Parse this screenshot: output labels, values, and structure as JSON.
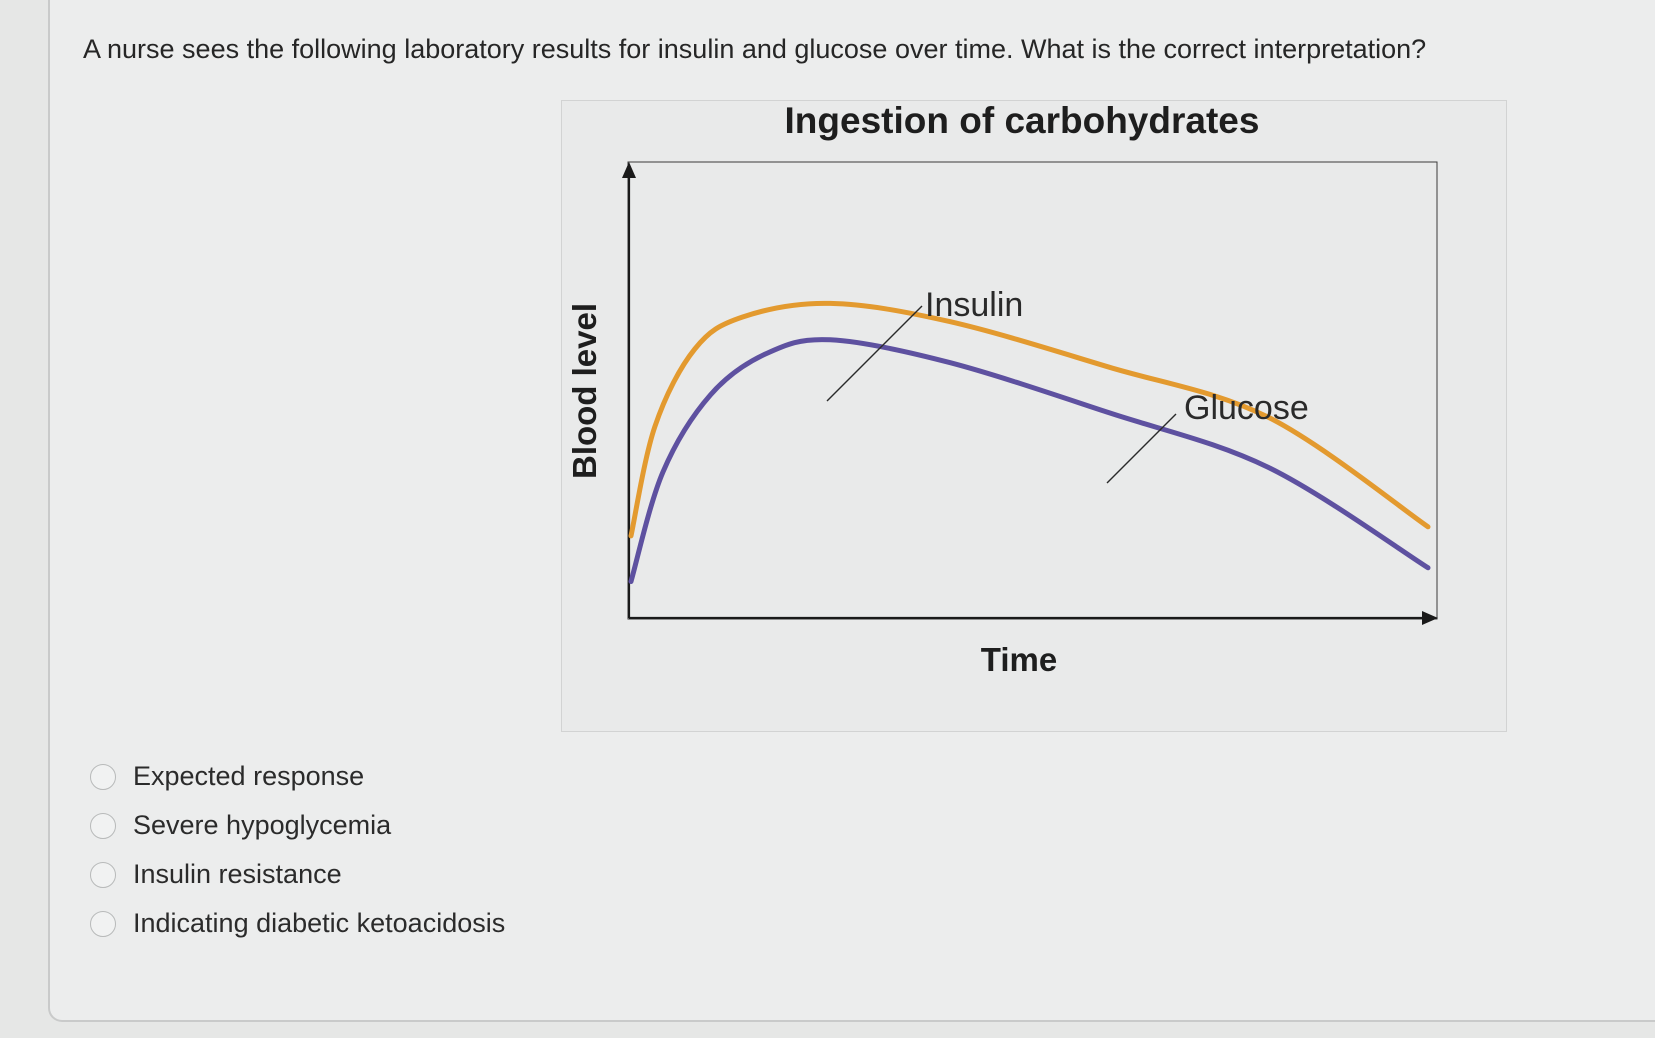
{
  "question": {
    "text": "A nurse sees the following laboratory results for insulin and glucose over time. What is the correct interpretation?"
  },
  "chart_data": {
    "type": "line",
    "title": "Ingestion of carbohydrates",
    "xlabel": "Time",
    "ylabel": "Blood level",
    "grid": false,
    "legend": "inline labels",
    "ylim": [
      0,
      1
    ],
    "series": [
      {
        "name": "Insulin",
        "color": "#e39a2f",
        "x": [
          0,
          0.03,
          0.08,
          0.14,
          0.25,
          0.4,
          0.6,
          0.8,
          1.0
        ],
        "y": [
          0.18,
          0.42,
          0.59,
          0.66,
          0.69,
          0.65,
          0.55,
          0.44,
          0.2
        ]
      },
      {
        "name": "Glucose",
        "color": "#5e51a0",
        "x": [
          0,
          0.04,
          0.1,
          0.17,
          0.25,
          0.4,
          0.6,
          0.8,
          1.0
        ],
        "y": [
          0.08,
          0.32,
          0.49,
          0.58,
          0.61,
          0.56,
          0.45,
          0.33,
          0.11
        ]
      }
    ]
  },
  "options": [
    {
      "label": "Expected response"
    },
    {
      "label": "Severe hypoglycemia"
    },
    {
      "label": "Insulin resistance"
    },
    {
      "label": "Indicating diabetic ketoacidosis"
    }
  ]
}
